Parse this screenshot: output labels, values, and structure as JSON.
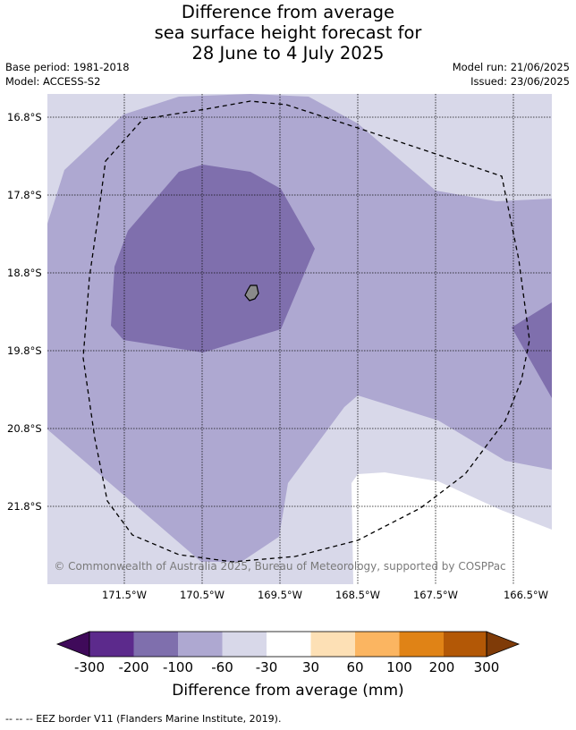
{
  "title": {
    "line1": "Difference from average",
    "line2": "sea surface height forecast for",
    "line3": "28 June to 4 July 2025"
  },
  "meta": {
    "base_period": "Base period: 1981-2018",
    "model": "Model: ACCESS-S2",
    "model_run": "Model run: 21/06/2025",
    "issued": "Issued: 23/06/2025"
  },
  "map": {
    "lat_labels": [
      "16.8°S",
      "17.8°S",
      "18.8°S",
      "19.8°S",
      "20.8°S",
      "21.8°S"
    ],
    "lon_labels": [
      "171.5°W",
      "170.5°W",
      "169.5°W",
      "168.5°W",
      "167.5°W",
      "166.5°W"
    ],
    "attribution": "© Commonwealth of Australia 2025, Bureau of Meteorology, supported by COSPPac",
    "colors": {
      "-200_-100": "#7f6fad",
      "-100_-60": "#aea8d1",
      "-60_-30": "#d8d8e9",
      "-30_30": "#ffffff"
    }
  },
  "colorbar": {
    "ticks": [
      "-300",
      "-200",
      "-100",
      "-60",
      "-30",
      "30",
      "60",
      "100",
      "200",
      "300"
    ],
    "colors": [
      "#5c2a8c",
      "#7f6fad",
      "#aea8d1",
      "#d8d8e9",
      "#ffffff",
      "#fde0b5",
      "#fbb561",
      "#e08316",
      "#b35806"
    ],
    "under_color": "#3f0a5a",
    "over_color": "#7f3b08",
    "label": "Difference from average (mm)"
  },
  "footnote": "--  --  -- EEZ border V11 (Flanders Marine Institute, 2019)."
}
